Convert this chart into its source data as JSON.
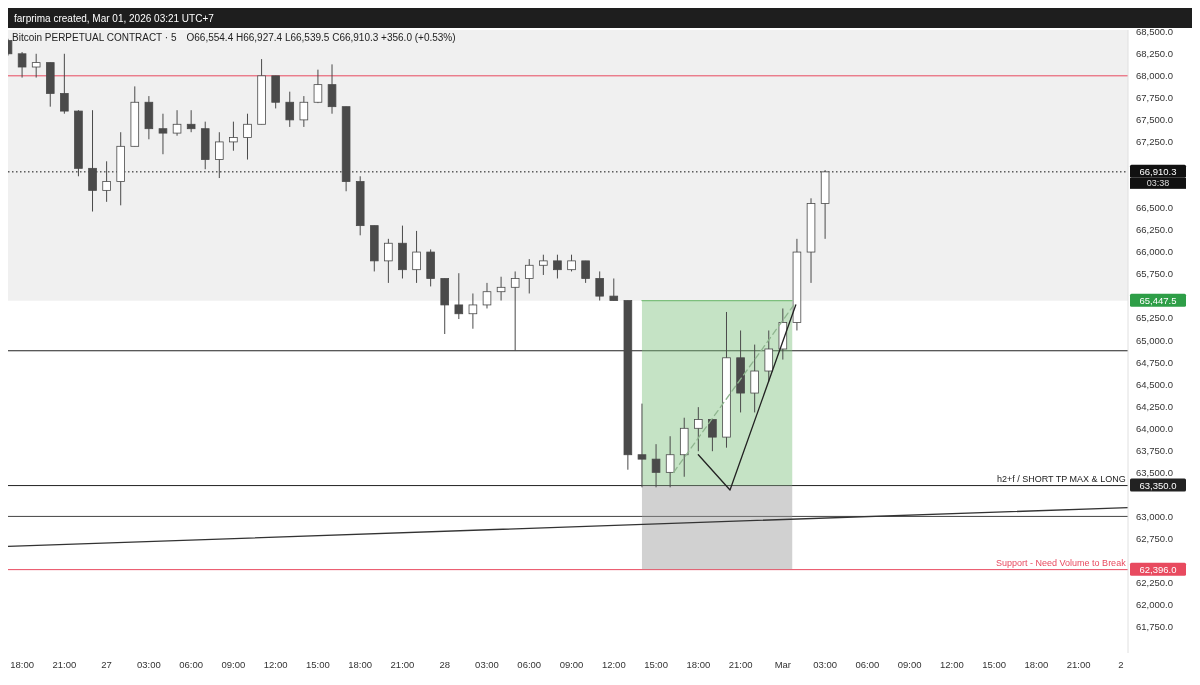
{
  "chart_data": {
    "type": "candlestick",
    "title": "Bitcoin PERPETUAL CONTRACT · 5",
    "subtitle": "O66,554.4  H66,927.4  L66,539.5  C66,910.3  +356.0 (+0.53%)",
    "annotations": [
      "farprima created, Mar 01, 2026 03:21 UTC+7",
      {
        "text": "03:38",
        "x": "2026-03-02T00:30",
        "y": 66910.3
      },
      {
        "text": "h2+f / SHORT TP MAX & LONG",
        "x": "2026-03-02T00:20",
        "y": 63350
      },
      {
        "text": "Support - Need Volume to Break",
        "x": "2026-03-02T00:20",
        "y": 62396
      }
    ],
    "color": "#4a4a4a",
    "x": [
      "2026-02-26T17:00",
      "2026-02-26T18:00",
      "2026-02-26T19:00",
      "2026-02-26T20:00",
      "2026-02-26T21:00",
      "2026-02-26T22:00",
      "2026-02-26T23:00",
      "2026-02-27T00:00",
      "2026-02-27T01:00",
      "2026-02-27T02:00",
      "2026-02-27T03:00",
      "2026-02-27T04:00",
      "2026-02-27T05:00",
      "2026-02-27T06:00",
      "2026-02-27T07:00",
      "2026-02-27T08:00",
      "2026-02-27T09:00",
      "2026-02-27T10:00",
      "2026-02-27T11:00",
      "2026-02-27T12:00",
      "2026-02-27T13:00",
      "2026-02-27T14:00",
      "2026-02-27T15:00",
      "2026-02-27T16:00",
      "2026-02-27T17:00",
      "2026-02-27T18:00",
      "2026-02-27T19:00",
      "2026-02-27T20:00",
      "2026-02-27T21:00",
      "2026-02-27T22:00",
      "2026-02-27T23:00",
      "2026-02-28T00:00",
      "2026-02-28T01:00",
      "2026-02-28T02:00",
      "2026-02-28T03:00",
      "2026-02-28T04:00",
      "2026-02-28T05:00",
      "2026-02-28T06:00",
      "2026-02-28T07:00",
      "2026-02-28T08:00",
      "2026-02-28T09:00",
      "2026-02-28T10:00",
      "2026-02-28T11:00",
      "2026-02-28T12:00",
      "2026-02-28T13:00",
      "2026-02-28T14:00",
      "2026-02-28T15:00",
      "2026-02-28T16:00",
      "2026-02-28T17:00",
      "2026-02-28T18:00",
      "2026-02-28T19:00",
      "2026-02-28T20:00",
      "2026-02-28T21:00",
      "2026-02-28T22:00",
      "2026-02-28T23:00",
      "2026-03-01T00:00",
      "2026-03-01T01:00",
      "2026-03-01T02:00",
      "2026-03-01T03:00"
    ],
    "ohlc": [
      [
        68400,
        68420,
        68230,
        68250
      ],
      [
        68250,
        68270,
        67980,
        68100
      ],
      [
        68100,
        68250,
        67980,
        68150
      ],
      [
        68150,
        68150,
        67650,
        67800
      ],
      [
        67800,
        68250,
        67570,
        67600
      ],
      [
        67600,
        67610,
        66860,
        66950
      ],
      [
        66950,
        67610,
        66460,
        66700
      ],
      [
        66700,
        67030,
        66570,
        66800
      ],
      [
        66800,
        67360,
        66530,
        67200
      ],
      [
        67200,
        67880,
        67200,
        67700
      ],
      [
        67700,
        67770,
        67280,
        67400
      ],
      [
        67400,
        67570,
        67110,
        67350
      ],
      [
        67350,
        67610,
        67320,
        67450
      ],
      [
        67450,
        67610,
        67360,
        67400
      ],
      [
        67400,
        67480,
        66940,
        67050
      ],
      [
        67050,
        67360,
        66840,
        67250
      ],
      [
        67250,
        67480,
        67150,
        67300
      ],
      [
        67300,
        67570,
        67050,
        67450
      ],
      [
        67450,
        68190,
        67450,
        68000
      ],
      [
        68000,
        68000,
        67630,
        67700
      ],
      [
        67700,
        67820,
        67420,
        67500
      ],
      [
        67500,
        67770,
        67420,
        67700
      ],
      [
        67700,
        68070,
        67690,
        67900
      ],
      [
        67900,
        68130,
        67570,
        67650
      ],
      [
        67650,
        67650,
        66690,
        66800
      ],
      [
        66800,
        66860,
        66190,
        66300
      ],
      [
        66300,
        66300,
        65780,
        65900
      ],
      [
        65900,
        66150,
        65650,
        66100
      ],
      [
        66100,
        66300,
        65700,
        65800
      ],
      [
        65800,
        66240,
        65650,
        66000
      ],
      [
        66000,
        66030,
        65610,
        65700
      ],
      [
        65700,
        65700,
        65070,
        65400
      ],
      [
        65400,
        65760,
        65240,
        65300
      ],
      [
        65300,
        65530,
        65130,
        65400
      ],
      [
        65400,
        65650,
        65360,
        65550
      ],
      [
        65550,
        65720,
        65450,
        65600
      ],
      [
        65600,
        65780,
        64880,
        65700
      ],
      [
        65700,
        65920,
        65530,
        65850
      ],
      [
        65850,
        65970,
        65740,
        65900
      ],
      [
        65900,
        65970,
        65700,
        65800
      ],
      [
        65800,
        65970,
        65780,
        65900
      ],
      [
        65900,
        65900,
        65650,
        65700
      ],
      [
        65700,
        65780,
        65450,
        65500
      ],
      [
        65500,
        65700,
        65450,
        65450
      ],
      [
        65450,
        65450,
        63530,
        63700
      ],
      [
        63700,
        64280,
        63330,
        63650
      ],
      [
        63650,
        63820,
        63330,
        63500
      ],
      [
        63500,
        63910,
        63330,
        63700
      ],
      [
        63700,
        64120,
        63450,
        64000
      ],
      [
        64000,
        64240,
        63740,
        64100
      ],
      [
        64100,
        64100,
        63740,
        63900
      ],
      [
        63900,
        65320,
        63780,
        64800
      ],
      [
        64800,
        65110,
        64180,
        64400
      ],
      [
        64400,
        64950,
        64180,
        64650
      ],
      [
        64650,
        65110,
        64530,
        64900
      ],
      [
        64900,
        65360,
        64780,
        65200
      ],
      [
        65200,
        66150,
        65110,
        66000
      ],
      [
        66000,
        66610,
        65650,
        66550
      ],
      [
        66550,
        66930,
        66150,
        66910
      ]
    ],
    "series": [
      {
        "type": "line",
        "color": "#333333",
        "x": [
          "2026-02-26T17:00",
          "2026-03-02T00:30"
        ],
        "values": [
          62660,
          63100
        ]
      },
      {
        "type": "line",
        "color": "#222222",
        "x": [
          "2026-02-28T18:00",
          "2026-02-28T20:15",
          "2026-03-01T00:55"
        ],
        "values": [
          63700,
          63300,
          65400
        ]
      },
      {
        "type": "line",
        "color": "#8fb58f",
        "line_style": "dashed",
        "x": [
          "2026-02-28T16:15",
          "2026-03-01T00:55"
        ],
        "values": [
          63500,
          65430
        ]
      },
      {
        "type": "line",
        "color": "#7dbf7d",
        "x": [
          "2026-02-28T14:00",
          "2026-03-01T00:40"
        ],
        "values": [
          65450,
          65450
        ],
        "upper": [
          65450,
          65450
        ],
        "lower": [
          63350,
          63350
        ]
      },
      {
        "type": "line",
        "color": "#9a9a9a",
        "x": [
          "2026-02-28T14:00",
          "2026-03-01T00:40"
        ],
        "values": [
          null,
          null
        ],
        "upper": [
          63350,
          63350
        ],
        "lower": [
          62400,
          62400
        ]
      }
    ],
    "bands": [
      {
        "axis": "y",
        "from": 65447.5,
        "to": 68520,
        "color": "#f0f0f0",
        "label": "65,447.5"
      }
    ],
    "ref_lines": [
      {
        "axis": "y",
        "value": 68000,
        "color": "#e84a5f"
      },
      {
        "axis": "y",
        "value": 66910.3,
        "label": "66,910.3",
        "color": "#111111",
        "line_style": "dotted"
      },
      {
        "axis": "y",
        "value": 64880,
        "color": "#222222"
      },
      {
        "axis": "y",
        "value": 63350,
        "label": "63,350.0",
        "color": "#222222"
      },
      {
        "axis": "y",
        "value": 63000,
        "color": "#444444"
      },
      {
        "axis": "y",
        "value": 62396,
        "label": "62,396.0",
        "color": "#e84a5f"
      }
    ],
    "xlim": [
      "2026-02-26T17:00",
      "2026-03-02T00:30"
    ],
    "xticks": [
      {
        "value": "2026-02-26T18:00",
        "label": "18:00"
      },
      {
        "value": "2026-02-26T21:00",
        "label": "21:00"
      },
      {
        "value": "2026-02-27T00:00",
        "label": "27"
      },
      {
        "value": "2026-02-27T03:00",
        "label": "03:00"
      },
      {
        "value": "2026-02-27T06:00",
        "label": "06:00"
      },
      {
        "value": "2026-02-27T09:00",
        "label": "09:00"
      },
      {
        "value": "2026-02-27T12:00",
        "label": "12:00"
      },
      {
        "value": "2026-02-27T15:00",
        "label": "15:00"
      },
      {
        "value": "2026-02-27T18:00",
        "label": "18:00"
      },
      {
        "value": "2026-02-27T21:00",
        "label": "21:00"
      },
      {
        "value": "2026-02-28T00:00",
        "label": "28"
      },
      {
        "value": "2026-02-28T03:00",
        "label": "03:00"
      },
      {
        "value": "2026-02-28T06:00",
        "label": "06:00"
      },
      {
        "value": "2026-02-28T09:00",
        "label": "09:00"
      },
      {
        "value": "2026-02-28T12:00",
        "label": "12:00"
      },
      {
        "value": "2026-02-28T15:00",
        "label": "15:00"
      },
      {
        "value": "2026-02-28T18:00",
        "label": "18:00"
      },
      {
        "value": "2026-02-28T21:00",
        "label": "21:00"
      },
      {
        "value": "2026-03-01T00:00",
        "label": "Mar"
      },
      {
        "value": "2026-03-01T03:00",
        "label": "03:00"
      },
      {
        "value": "2026-03-01T06:00",
        "label": "06:00"
      },
      {
        "value": "2026-03-01T09:00",
        "label": "09:00"
      },
      {
        "value": "2026-03-01T12:00",
        "label": "12:00"
      },
      {
        "value": "2026-03-01T15:00",
        "label": "15:00"
      },
      {
        "value": "2026-03-01T18:00",
        "label": "18:00"
      },
      {
        "value": "2026-03-01T21:00",
        "label": "21:00"
      },
      {
        "value": "2026-03-02T00:00",
        "label": "2"
      }
    ],
    "ylim": [
      61450,
      68520
    ],
    "yticks": [
      {
        "value": 68500,
        "label": "68,500.0"
      },
      {
        "value": 68250,
        "label": "68,250.0"
      },
      {
        "value": 68000,
        "label": "68,000.0"
      },
      {
        "value": 67750,
        "label": "67,750.0"
      },
      {
        "value": 67500,
        "label": "67,500.0"
      },
      {
        "value": 67250,
        "label": "67,250.0"
      },
      {
        "value": 66500,
        "label": "66,500.0"
      },
      {
        "value": 66250,
        "label": "66,250.0"
      },
      {
        "value": 66000,
        "label": "66,000.0"
      },
      {
        "value": 65750,
        "label": "65,750.0"
      },
      {
        "value": 65250,
        "label": "65,250.0"
      },
      {
        "value": 65000,
        "label": "65,000.0"
      },
      {
        "value": 64750,
        "label": "64,750.0"
      },
      {
        "value": 64500,
        "label": "64,500.0"
      },
      {
        "value": 64250,
        "label": "64,250.0"
      },
      {
        "value": 64000,
        "label": "64,000.0"
      },
      {
        "value": 63750,
        "label": "63,750.0"
      },
      {
        "value": 63500,
        "label": "63,500.0"
      },
      {
        "value": 63000,
        "label": "63,000.0"
      },
      {
        "value": 62750,
        "label": "62,750.0"
      },
      {
        "value": 62250,
        "label": "62,250.0"
      },
      {
        "value": 62000,
        "label": "62,000.0"
      },
      {
        "value": 61750,
        "label": "61,750.0"
      }
    ]
  }
}
